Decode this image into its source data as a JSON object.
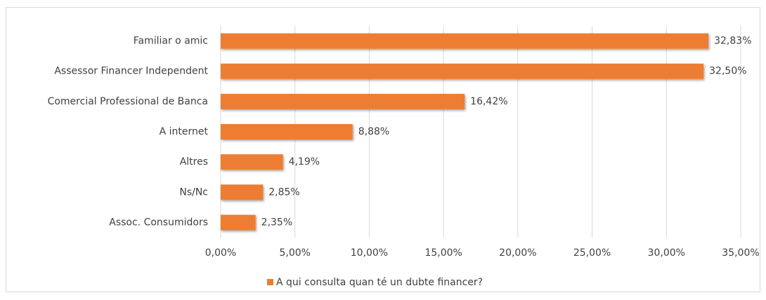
{
  "chart_data": {
    "type": "barh",
    "categories": [
      "Familiar o amic",
      "Assessor Financer Independent",
      "Comercial Professional de Banca",
      "A internet",
      "Altres",
      "Ns/Nc",
      "Assoc. Consumidors"
    ],
    "series": [
      {
        "name": "A qui consulta quan té un dubte financer?",
        "color": "#ed7d31",
        "values": [
          32.83,
          32.5,
          16.42,
          8.88,
          4.19,
          2.85,
          2.35
        ],
        "value_labels": [
          "32,83%",
          "32,50%",
          "16,42%",
          "8,88%",
          "4,19%",
          "2,85%",
          "2,35%"
        ]
      }
    ],
    "xlim": [
      0,
      35
    ],
    "xticks": [
      {
        "value": 0,
        "label": "0,00%"
      },
      {
        "value": 5,
        "label": "5,00%"
      },
      {
        "value": 10,
        "label": "10,00%"
      },
      {
        "value": 15,
        "label": "15,00%"
      },
      {
        "value": 20,
        "label": "20,00%"
      },
      {
        "value": 25,
        "label": "25,00%"
      },
      {
        "value": 30,
        "label": "30,00%"
      },
      {
        "value": 35,
        "label": "35,00%"
      }
    ],
    "grid": true,
    "legend": "bottom"
  }
}
